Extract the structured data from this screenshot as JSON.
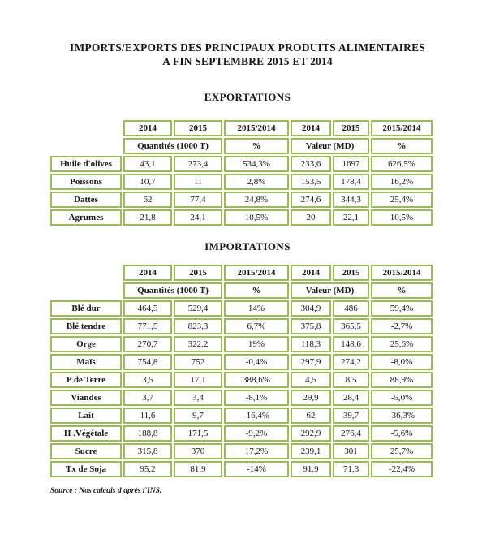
{
  "page": {
    "title_line1": "IMPORTS/EXPORTS DES PRINCIPAUX PRODUITS ALIMENTAIRES",
    "title_line2": "A FIN SEPTEMBRE 2015 ET 2014",
    "source": "Source : Nos calculs d'après l'INS."
  },
  "colors": {
    "table_border_green": "#9BBB59",
    "text": "#171717"
  },
  "tables": {
    "exports": {
      "heading": "EXPORTATIONS",
      "year_headers": [
        "2014",
        "2015",
        "2015/2014",
        "2014",
        "2015",
        "2015/2014"
      ],
      "group_headers": [
        {
          "label": "Quantités (1000 T)",
          "colspan": 2
        },
        {
          "label": "%",
          "colspan": 1
        },
        {
          "label": "Valeur (MD)",
          "colspan": 2
        },
        {
          "label": "%",
          "colspan": 1
        }
      ],
      "rows": [
        {
          "label": "Huile d'olives",
          "values": [
            "43,1",
            "273,4",
            "534,3%",
            "233,6",
            "1697",
            "626,5%"
          ]
        },
        {
          "label": "Poissons",
          "values": [
            "10,7",
            "11",
            "2,8%",
            "153,5",
            "178,4",
            "16,2%"
          ]
        },
        {
          "label": "Dattes",
          "values": [
            "62",
            "77,4",
            "24,8%",
            "274,6",
            "344,3",
            "25,4%"
          ]
        },
        {
          "label": "Agrumes",
          "values": [
            "21,8",
            "24,1",
            "10,5%",
            "20",
            "22,1",
            "10,5%"
          ]
        }
      ]
    },
    "imports": {
      "heading": "IMPORTATIONS",
      "year_headers": [
        "2014",
        "2015",
        "2015/2014",
        "2014",
        "2015",
        "2015/2014"
      ],
      "group_headers": [
        {
          "label": "Quantités (1000 T)",
          "colspan": 2
        },
        {
          "label": "%",
          "colspan": 1
        },
        {
          "label": "Valeur (MD)",
          "colspan": 2
        },
        {
          "label": "%",
          "colspan": 1
        }
      ],
      "rows": [
        {
          "label": "Blé dur",
          "values": [
            "464,5",
            "529,4",
            "14%",
            "304,9",
            "486",
            "59,4%"
          ]
        },
        {
          "label": "Blé tendre",
          "values": [
            "771,5",
            "823,3",
            "6,7%",
            "375,8",
            "365,5",
            "-2,7%"
          ]
        },
        {
          "label": "Orge",
          "values": [
            "270,7",
            "322,2",
            "19%",
            "118,3",
            "148,6",
            "25,6%"
          ]
        },
        {
          "label": "Maïs",
          "values": [
            "754,8",
            "752",
            "-0,4%",
            "297,9",
            "274,2",
            "-8,0%"
          ]
        },
        {
          "label": "P de Terre",
          "values": [
            "3,5",
            "17,1",
            "388,6%",
            "4,5",
            "8,5",
            "88,9%"
          ]
        },
        {
          "label": "Viandes",
          "values": [
            "3,7",
            "3,4",
            "-8,1%",
            "29,9",
            "28,4",
            "-5,0%"
          ]
        },
        {
          "label": "Lait",
          "values": [
            "11,6",
            "9,7",
            "-16,4%",
            "62",
            "39,7",
            "-36,3%"
          ]
        },
        {
          "label": "H .Végétale",
          "values": [
            "188,8",
            "171,5",
            "-9,2%",
            "292,9",
            "276,4",
            "-5,6%"
          ]
        },
        {
          "label": "Sucre",
          "values": [
            "315,8",
            "370",
            "17,2%",
            "239,1",
            "301",
            "25,7%"
          ]
        },
        {
          "label": "Tx de Soja",
          "values": [
            "95,2",
            "81,9",
            "-14%",
            "91,9",
            "71,3",
            "-22,4%"
          ]
        }
      ]
    }
  }
}
